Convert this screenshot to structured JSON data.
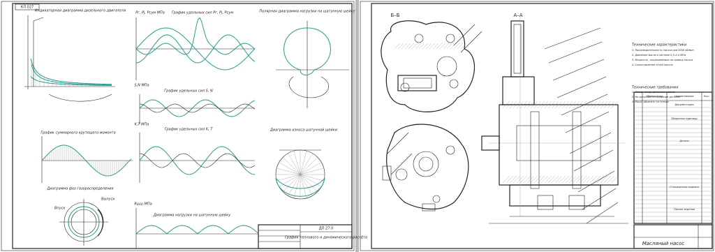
{
  "left_sheet": {
    "stamp_code": "КЛ 027",
    "indicator_title": "Индикаторная диаграмма дизельного двигателя",
    "forces_axis": "Pг, Pj, Pсум МПа",
    "forces_title": "График удельных сил Pг, Pj, Pсум",
    "polar_title": "Полярная диаграмма нагрузки на шатунную шейку",
    "torque_title": "График суммарного крутящего момента",
    "sn_axis": "S,N МПа",
    "sn_title": "График удельных сил S, N",
    "kt_axis": "K,T МПа",
    "kt_title": "График удельных сил K, T",
    "wear_title": "Диаграмма износа шатунной шейки",
    "valve_title": "Диаграмма фаз газораспределения",
    "valve_labels": [
      "Впуск",
      "Выпуск"
    ],
    "load_axis": "Rшш МПа",
    "load_title": "Диаграмма нагрузки на шатунную шейку",
    "doc_code": "ДП 27.0",
    "drawing_title": "График теплового и динамического расчёта"
  },
  "right_sheet": {
    "section_bb": "Б–Б",
    "section_aa": "А–А",
    "notes_title": "Технические характеристики",
    "notes": [
      "1. Производительность насоса при 2000 об/мин",
      "2. Давление масла в системе 0,3–0,5 МПа",
      "3. Мощность, затрачиваемая на привод насоса",
      "4. Сопротивление сетей насоса"
    ],
    "requirements_title": "Технические требования",
    "requirements": [
      "1. Зазор между деталями насоса",
      "2. Не допускается заедание деталей",
      "3. Насос обкатать на стенде"
    ],
    "spec_header": [
      "Обозначение",
      "Наименование",
      "Кол."
    ],
    "spec_sections": [
      "Документация",
      "Сборочные единицы",
      "Детали",
      "Стандартные изделия",
      "Прочие изделия"
    ],
    "drawing_title": "Масляный насос"
  }
}
